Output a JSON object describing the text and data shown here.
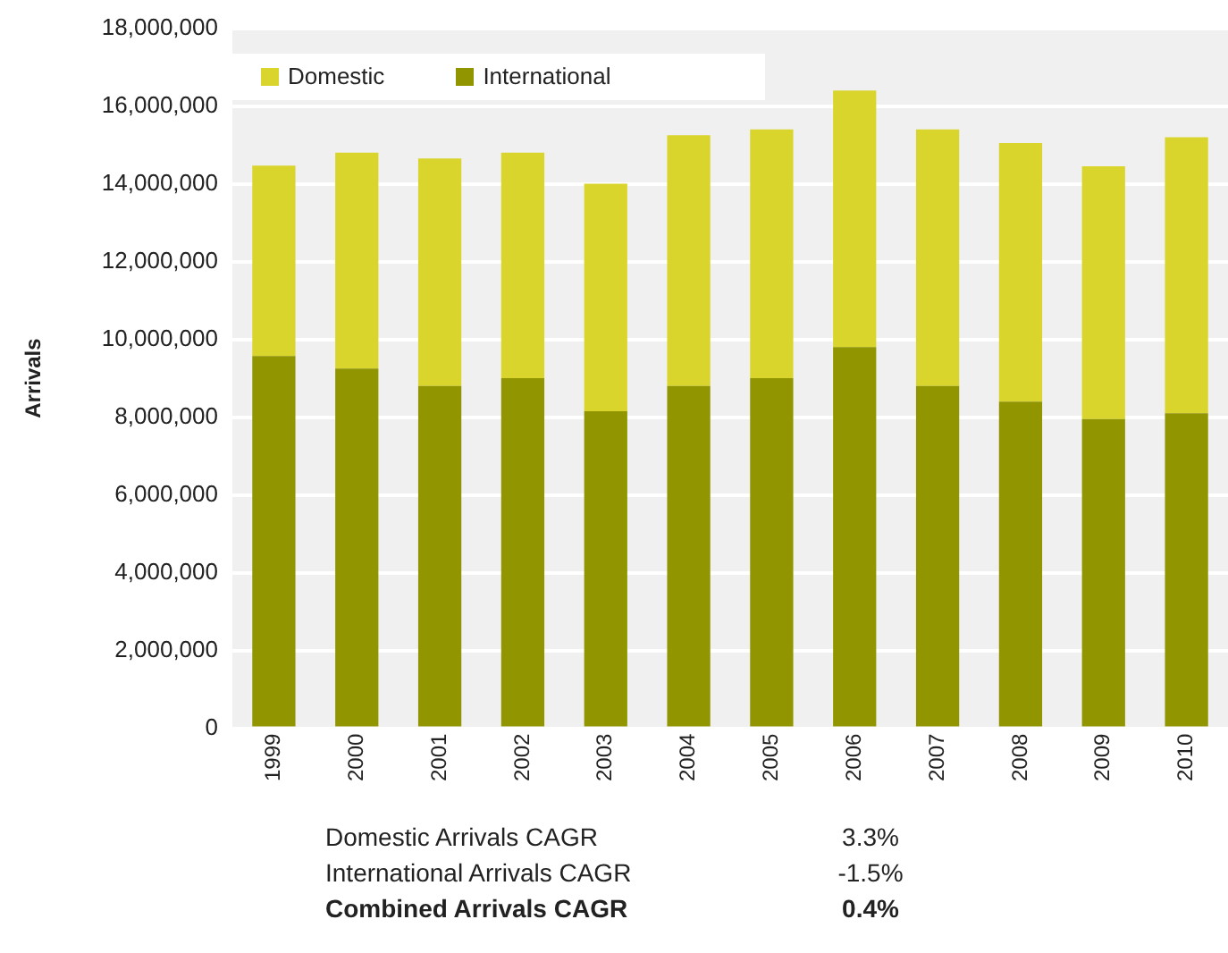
{
  "chart_data": {
    "type": "bar",
    "stacked": true,
    "ylabel": "Arrivals",
    "categories": [
      "1999",
      "2000",
      "2001",
      "2002",
      "2003",
      "2004",
      "2005",
      "2006",
      "2007",
      "2008",
      "2009",
      "2010"
    ],
    "series": [
      {
        "name": "International",
        "color": "#919600",
        "values": [
          9570000,
          9250000,
          8800000,
          9000000,
          8150000,
          8800000,
          9000000,
          9800000,
          8800000,
          8400000,
          7950000,
          8100000
        ]
      },
      {
        "name": "Domestic",
        "color": "#dad52c",
        "values": [
          4900000,
          5550000,
          5850000,
          5800000,
          5850000,
          6450000,
          6400000,
          6600000,
          6600000,
          6650000,
          6500000,
          7100000
        ]
      }
    ],
    "ylim": [
      0,
      18000000
    ],
    "yticks": [
      {
        "value": 0,
        "label": "0"
      },
      {
        "value": 2000000,
        "label": "2,000,000"
      },
      {
        "value": 4000000,
        "label": "4,000,000"
      },
      {
        "value": 6000000,
        "label": "6,000,000"
      },
      {
        "value": 8000000,
        "label": "8,000,000"
      },
      {
        "value": 10000000,
        "label": "10,000,000"
      },
      {
        "value": 12000000,
        "label": "12,000,000"
      },
      {
        "value": 14000000,
        "label": "14,000,000"
      },
      {
        "value": 16000000,
        "label": "16,000,000"
      },
      {
        "value": 18000000,
        "label": "18,000,000"
      }
    ],
    "grid": "y",
    "legend": "top left",
    "annotations": [
      "Domestic Arrivals CAGR",
      "3.3%",
      "International Arrivals CAGR",
      "-1.5%",
      "Combined Arrivals CAGR",
      "0.4%"
    ]
  }
}
